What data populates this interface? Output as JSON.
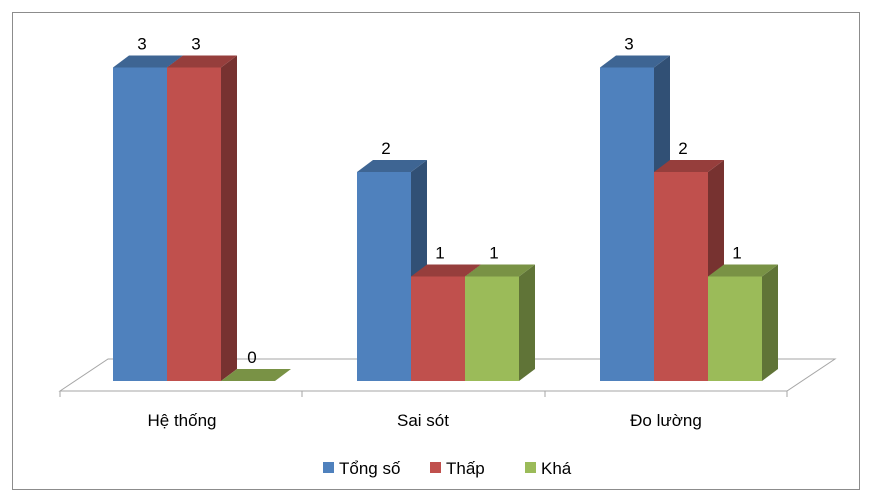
{
  "chart_data": {
    "type": "bar",
    "title": "",
    "xlabel": "",
    "ylabel": "",
    "categories": [
      "Hệ thống",
      "Sai sót",
      "Đo lường"
    ],
    "series": [
      {
        "name": "Tổng số",
        "values": [
          3,
          2,
          3
        ],
        "color": "#4F81BD"
      },
      {
        "name": "Thấp",
        "values": [
          3,
          1,
          2
        ],
        "color": "#C0504D"
      },
      {
        "name": "Khá",
        "values": [
          0,
          1,
          1
        ],
        "color": "#9BBB59"
      }
    ],
    "ylim": [
      0,
      3
    ],
    "grid": false,
    "legend": "bottom",
    "style": "3d-clustered-column"
  }
}
